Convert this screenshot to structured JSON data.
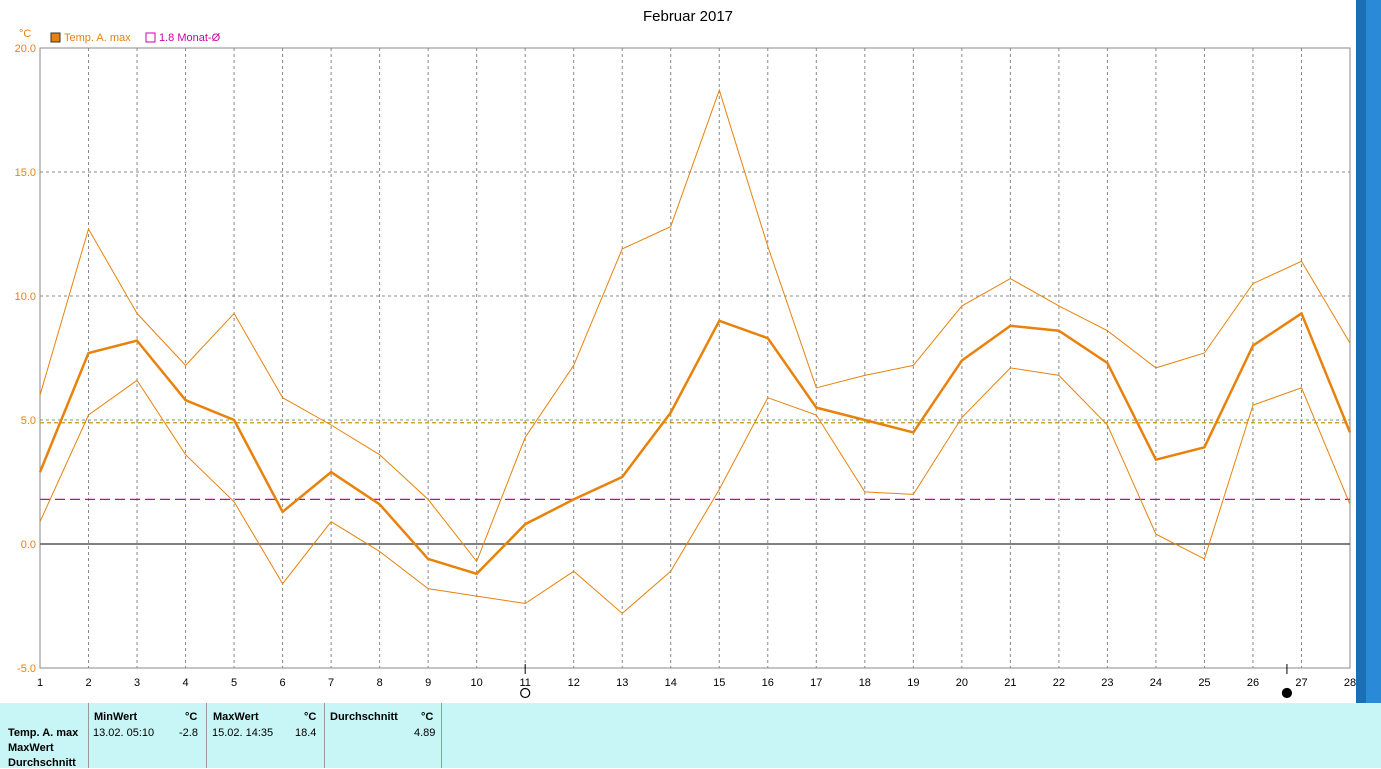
{
  "chart_data": {
    "type": "line",
    "title": "Februar 2017",
    "ylabel": "°C",
    "xlabel": "",
    "ylim": [
      -5,
      20
    ],
    "yticks": [
      "20.0",
      "15.0",
      "10.0",
      "5.0",
      "0.0",
      "-5.0"
    ],
    "ytick_values": [
      20,
      15,
      10,
      5,
      0,
      -5
    ],
    "x": [
      1,
      2,
      3,
      4,
      5,
      6,
      7,
      8,
      9,
      10,
      11,
      12,
      13,
      14,
      15,
      16,
      17,
      18,
      19,
      20,
      21,
      22,
      23,
      24,
      25,
      26,
      27,
      28
    ],
    "xticks": [
      "1",
      "2",
      "3",
      "4",
      "5",
      "6",
      "7",
      "8",
      "9",
      "10",
      "11",
      "12",
      "13",
      "14",
      "15",
      "16",
      "17",
      "18",
      "19",
      "20",
      "21",
      "22",
      "23",
      "24",
      "25",
      "26",
      "27",
      "28"
    ],
    "grid": true,
    "legend": [
      {
        "label": "Temp. A. max",
        "color": "#e8820c",
        "filled": true
      },
      {
        "label": "1.8 Monat-Ø",
        "color": "#cc00aa",
        "filled": false
      }
    ],
    "series": [
      {
        "name": "Temp. A. max",
        "role": "main",
        "color": "#e8820c",
        "values": [
          2.9,
          7.7,
          8.2,
          5.8,
          5.0,
          1.3,
          2.9,
          1.6,
          -0.6,
          -1.2,
          0.8,
          1.8,
          2.7,
          5.3,
          9.0,
          8.3,
          5.5,
          5.0,
          4.5,
          7.4,
          8.8,
          8.6,
          7.3,
          3.4,
          3.9,
          8.0,
          9.3,
          4.5
        ]
      },
      {
        "role": "upper",
        "color": "#e8820c",
        "values": [
          6.0,
          12.7,
          9.3,
          7.2,
          9.3,
          5.9,
          4.8,
          3.6,
          1.8,
          -0.7,
          4.3,
          7.2,
          11.9,
          12.8,
          18.3,
          12.0,
          6.3,
          6.8,
          7.2,
          9.6,
          10.7,
          9.6,
          8.6,
          7.1,
          7.7,
          10.5,
          11.4,
          8.1
        ]
      },
      {
        "role": "lower",
        "color": "#e8820c",
        "values": [
          0.9,
          5.2,
          6.6,
          3.6,
          1.7,
          -1.6,
          0.9,
          -0.3,
          -1.8,
          -2.1,
          -2.4,
          -1.1,
          -2.8,
          -1.1,
          2.2,
          5.9,
          5.2,
          2.1,
          2.0,
          5.1,
          7.1,
          6.8,
          4.8,
          0.4,
          -0.6,
          5.6,
          6.3,
          1.6
        ]
      }
    ],
    "reference_lines": [
      {
        "value": 4.89,
        "color": "#c89800",
        "style": "dashed"
      },
      {
        "value": 1.8,
        "color": "#cc00aa",
        "style": "dashed"
      }
    ],
    "moon_markers": [
      {
        "day": 11,
        "phase": "full"
      },
      {
        "day": 26.7,
        "phase": "new"
      }
    ]
  },
  "stats": {
    "row_labels": [
      "Temp. A. max",
      "MaxWert",
      "Durchschnitt"
    ],
    "min": {
      "header": "MinWert",
      "unit": "°C",
      "time": "13.02.  05:10",
      "value": "-2.8"
    },
    "max": {
      "header": "MaxWert",
      "unit": "°C",
      "time": "15.02.  14:35",
      "value": "18.4"
    },
    "avg": {
      "header": "Durchschnitt",
      "unit": "°C",
      "value": "4.89"
    }
  }
}
